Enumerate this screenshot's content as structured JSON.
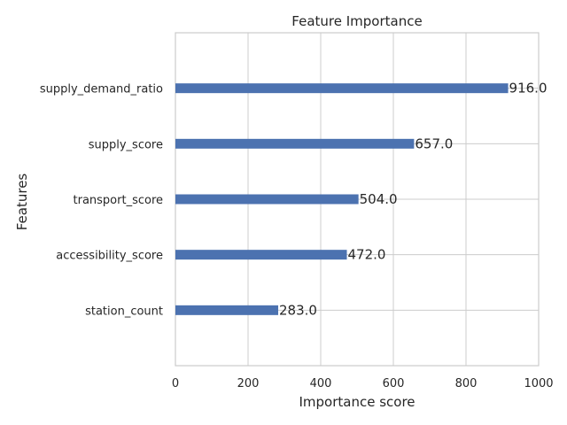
{
  "chart_data": {
    "type": "bar",
    "orientation": "horizontal",
    "title": "Feature Importance",
    "xlabel": "Importance score",
    "ylabel": "Features",
    "categories": [
      "supply_demand_ratio",
      "supply_score",
      "transport_score",
      "accessibility_score",
      "station_count"
    ],
    "values": [
      916.0,
      657.0,
      504.0,
      472.0,
      283.0
    ],
    "value_labels": [
      "916.0",
      "657.0",
      "504.0",
      "472.0",
      "283.0"
    ],
    "xlim": [
      0,
      1000
    ],
    "xticks": [
      0,
      200,
      400,
      600,
      800,
      1000
    ],
    "xtick_labels": [
      "0",
      "200",
      "400",
      "600",
      "800",
      "1000"
    ],
    "grid": true,
    "bar_color": "#4c72b0"
  }
}
